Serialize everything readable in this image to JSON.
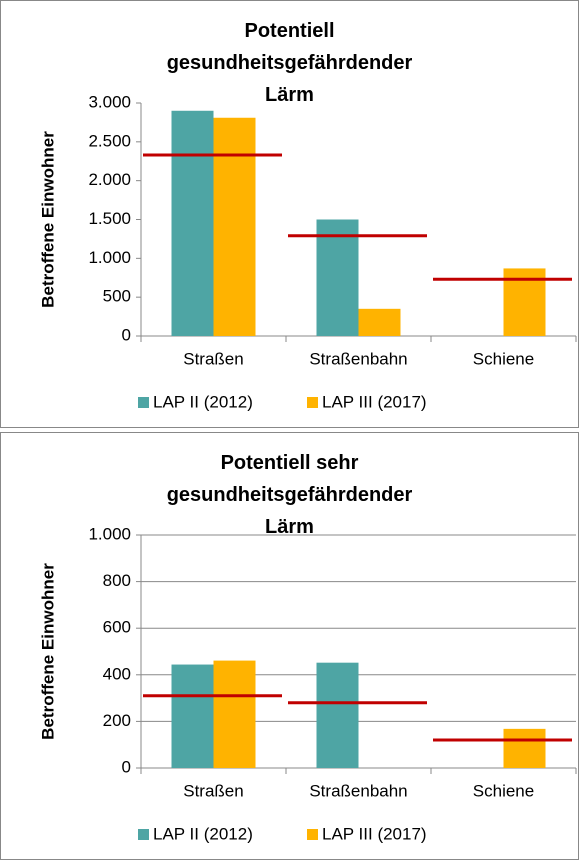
{
  "chart_data": [
    {
      "type": "bar",
      "title": "Potentiell gesundheitsgefährdender Lärm",
      "y_label": "Betroffene Einwohner",
      "categories": [
        "Straßen",
        "Straßenbahn",
        "Schiene"
      ],
      "series": [
        {
          "name": "LAP II (2012)",
          "color": "#4ea5a4",
          "values": [
            2900,
            1500,
            null
          ]
        },
        {
          "name": "LAP III (2017)",
          "color": "#ffb300",
          "values": [
            2810,
            350,
            870
          ]
        }
      ],
      "lines": {
        "color": "#c00000",
        "values": [
          2330,
          1290,
          730
        ]
      },
      "ylim": [
        0,
        3000
      ],
      "yticks": [
        0,
        500,
        {
          "value": 1000,
          "label": "1.000"
        },
        {
          "value": 1500,
          "label": "1.500"
        },
        {
          "value": 2000,
          "label": "2.000"
        },
        {
          "value": 2500,
          "label": "2.500"
        },
        {
          "value": 3000,
          "label": "3.000"
        }
      ],
      "grid": false,
      "legend": "bottom"
    },
    {
      "type": "bar",
      "title": "Potentiell sehr gesundheitsgefährdender Lärm",
      "y_label": "Betroffene Einwohner",
      "categories": [
        "Straßen",
        "Straßenbahn",
        "Schiene"
      ],
      "series": [
        {
          "name": "LAP II (2012)",
          "color": "#4ea5a4",
          "values": [
            444,
            452,
            null
          ]
        },
        {
          "name": "LAP III (2017)",
          "color": "#ffb300",
          "values": [
            461,
            null,
            168
          ]
        }
      ],
      "lines": {
        "color": "#c00000",
        "values": [
          310,
          280,
          120
        ]
      },
      "ylim": [
        0,
        1000
      ],
      "yticks": [
        0,
        200,
        400,
        600,
        800,
        {
          "value": 1000,
          "label": "1.000"
        }
      ],
      "grid": true,
      "legend": "bottom"
    }
  ]
}
